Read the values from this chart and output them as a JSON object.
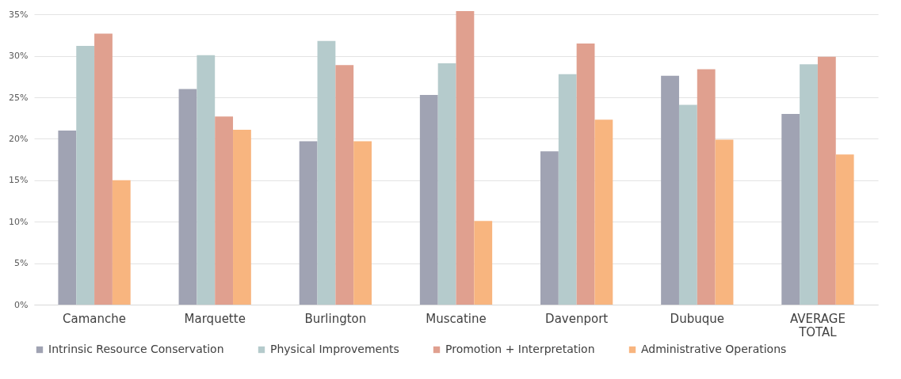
{
  "chart_data": {
    "type": "bar",
    "categories": [
      "Camanche",
      "Marquette",
      "Burlington",
      "Muscatine",
      "Davenport",
      "Dubuque",
      "AVERAGE TOTAL"
    ],
    "series": [
      {
        "name": "Intrinsic Resource Conservation",
        "color": "#a0a3b3",
        "values": [
          21.0,
          26.0,
          19.7,
          25.3,
          18.5,
          27.6,
          23.0
        ]
      },
      {
        "name": "Physical Improvements",
        "color": "#b5cbcc",
        "values": [
          31.2,
          30.1,
          31.8,
          29.1,
          27.8,
          24.1,
          29.0
        ]
      },
      {
        "name": "Promotion + Interpretation",
        "color": "#e0a08f",
        "values": [
          32.7,
          22.7,
          28.9,
          35.4,
          31.5,
          28.4,
          29.9
        ]
      },
      {
        "name": "Administrative Operations",
        "color": "#f8b57f",
        "values": [
          15.0,
          21.1,
          19.7,
          10.1,
          22.3,
          19.9,
          18.1
        ]
      }
    ],
    "ylim": [
      0,
      35.6
    ],
    "yticks": [
      {
        "value": 0,
        "label": "0%"
      },
      {
        "value": 5,
        "label": "5%"
      },
      {
        "value": 10,
        "label": "10%"
      },
      {
        "value": 15,
        "label": "15%"
      },
      {
        "value": 20,
        "label": "20%"
      },
      {
        "value": 25,
        "label": "25%"
      },
      {
        "value": 30,
        "label": "30%"
      },
      {
        "value": 35,
        "label": "35%"
      }
    ],
    "grid": "y",
    "legend": "bottom"
  }
}
